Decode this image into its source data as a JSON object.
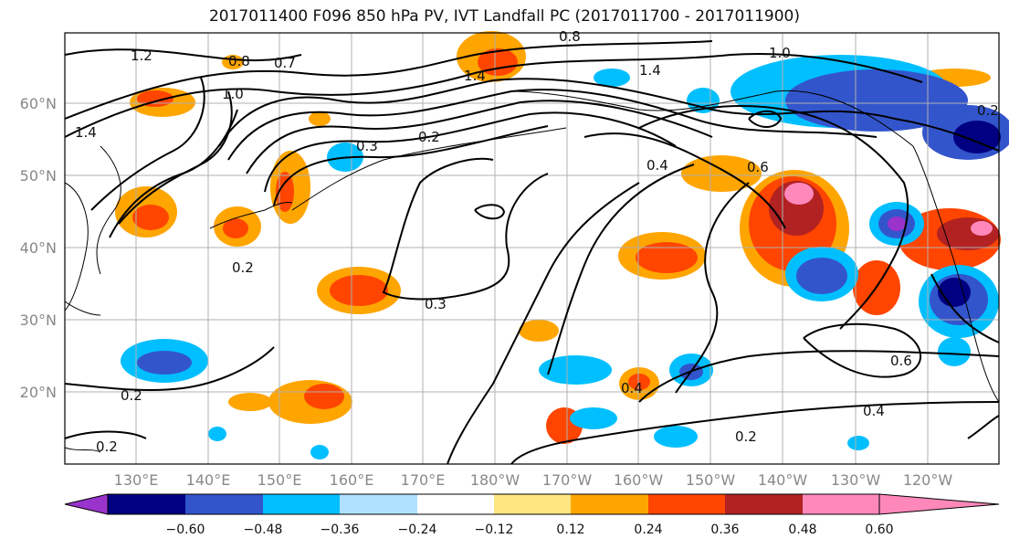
{
  "title": "2017011400 F096 850 hPa PV, IVT Landfall PC (2017011700 - 2017011900)",
  "latitude_labels": [
    "60°N",
    "50°N",
    "40°N",
    "30°N",
    "20°N"
  ],
  "longitude_labels": [
    "130°E",
    "140°E",
    "150°E",
    "160°E",
    "170°E",
    "180°W",
    "170°W",
    "160°W",
    "150°W",
    "140°W",
    "130°W",
    "120°W"
  ],
  "contour_labels": [
    "1.2",
    "0.8",
    "0.7",
    "1.0",
    "1.4",
    "0.3",
    "0.2",
    "0.8",
    "1.0",
    "1.4",
    "0.4",
    "0.6",
    "0.3",
    "0.2",
    "0.4",
    "0.2",
    "0.6",
    "0.4",
    "0.2",
    "0.2",
    "1.4",
    "0.2"
  ],
  "colorbar": {
    "ticks": [
      "−0.60",
      "−0.48",
      "−0.36",
      "−0.24",
      "−0.12",
      "0.12",
      "0.24",
      "0.36",
      "0.48",
      "0.60"
    ],
    "colors": [
      "#9933cc",
      "#000080",
      "#3355cc",
      "#00bfff",
      "#b0e0ff",
      "#ffffff",
      "#ffe680",
      "#ffa500",
      "#ff4500",
      "#b22222",
      "#ff88bb"
    ]
  }
}
